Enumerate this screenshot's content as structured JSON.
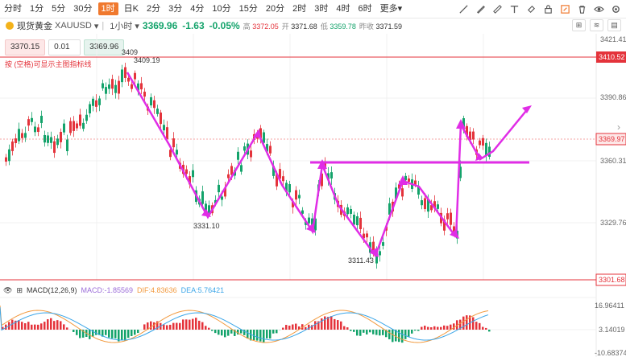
{
  "timeframes": [
    "分时",
    "1分",
    "5分",
    "30分",
    "1时",
    "日K",
    "2分",
    "3分",
    "4分",
    "10分",
    "15分",
    "20分",
    "2时",
    "3时",
    "4时",
    "6时",
    "更多"
  ],
  "active_timeframe_index": 4,
  "more_arrow": "▾",
  "tools": [
    "draw-line-icon",
    "pen-icon",
    "ruler-icon",
    "text-icon",
    "eraser-icon",
    "lock-icon",
    "edit-icon",
    "delete-icon",
    "eye-icon",
    "settings-icon"
  ],
  "symbol": {
    "name": "现货黄金",
    "code": "XAUUSD",
    "interval": "1小时",
    "price": "3369.96",
    "change": "-1.63",
    "change_pct": "-0.05%",
    "high_label": "高",
    "high": "3372.05",
    "open_label": "开",
    "open": "3371.68",
    "low_label": "低",
    "low": "3359.78",
    "prev_label": "昨收",
    "prev": "3371.59"
  },
  "order": {
    "sell": "3370.15",
    "qty": "0.01",
    "buy": "3369.96"
  },
  "hint": "按 (空格)可显示主图指标线",
  "price_axis": {
    "ticks": [
      "3421.41",
      "3390.86",
      "3360.31",
      "3329.76"
    ],
    "marked_high": "3410.52",
    "marked_current": "3369.97",
    "marked_low": "3301.68"
  },
  "annotations": {
    "top_small": "3409",
    "high_label": "3409.19",
    "low1": "3331.10",
    "low2": "3311.43"
  },
  "macd": {
    "label": "MACD(12,26,9)",
    "macd": "MACD:-1.85569",
    "dif": "DIF:4.83636",
    "dea": "DEA:5.76421",
    "ticks": [
      "16.96411",
      "3.14019",
      "-10.68374"
    ]
  },
  "colors": {
    "up": "#e4333b",
    "down": "#14a36b",
    "annotation": "#e02de6",
    "accent": "#f0792e"
  }
}
